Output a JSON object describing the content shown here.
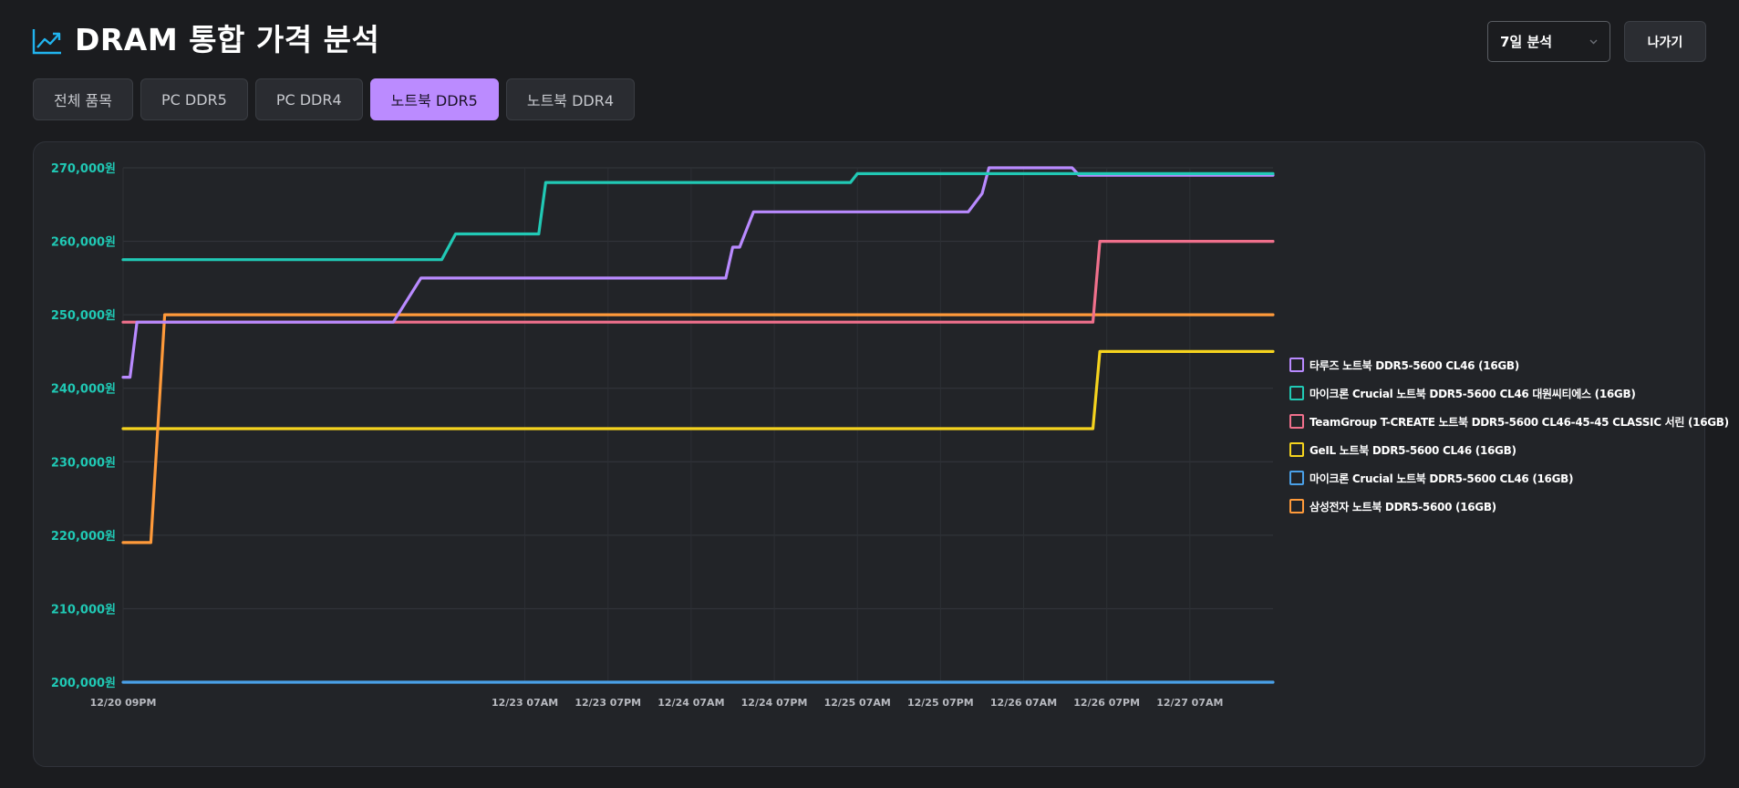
{
  "header": {
    "title": "DRAM 통합 가격 분석",
    "icon": "trending-up-icon",
    "accent": "#21b4ef"
  },
  "controls": {
    "period_label": "7일 분석",
    "exit_label": "나가기"
  },
  "tabs": [
    {
      "label": "전체 품목",
      "active": false
    },
    {
      "label": "PC DDR5",
      "active": false
    },
    {
      "label": "PC DDR4",
      "active": false
    },
    {
      "label": "노트북 DDR5",
      "active": true
    },
    {
      "label": "노트북 DDR4",
      "active": false
    }
  ],
  "chart_data": {
    "type": "line",
    "x_start": "12/20 09PM",
    "x_end": "12/27 07PM",
    "x_ticks": [
      "12/20 09PM",
      "12/23 07AM",
      "12/23 07PM",
      "12/24 07AM",
      "12/24 07PM",
      "12/25 07AM",
      "12/25 07PM",
      "12/26 07AM",
      "12/26 07PM",
      "12/27 07AM"
    ],
    "y_ticks": [
      "200,000원",
      "210,000원",
      "220,000원",
      "230,000원",
      "240,000원",
      "250,000원",
      "260,000원",
      "270,000원"
    ],
    "ylim": [
      200000,
      270000
    ],
    "grid": true,
    "legend_position": "right",
    "series": [
      {
        "name": "타루즈 노트북 DDR5-5600 CL46 (16GB)",
        "color": "#b98aff",
        "points": [
          [
            "12/20 09PM",
            241500
          ],
          [
            "12/20 10PM",
            241500
          ],
          [
            "12/20 11PM",
            249000
          ],
          [
            "12/22 12PM",
            249000
          ],
          [
            "12/22 04PM",
            255000
          ],
          [
            "12/24 12PM",
            255000
          ],
          [
            "12/24 01PM",
            259200
          ],
          [
            "12/24 02PM",
            259200
          ],
          [
            "12/24 04PM",
            264000
          ],
          [
            "12/25 11PM",
            264000
          ],
          [
            "12/26 01AM",
            266500
          ],
          [
            "12/26 02AM",
            270000
          ],
          [
            "12/26 02PM",
            270000
          ],
          [
            "12/26 03PM",
            269000
          ],
          [
            "12/27 07PM",
            269000
          ]
        ]
      },
      {
        "name": "마이크론 Crucial 노트북 DDR5-5600 CL46 대원씨티에스 (16GB)",
        "color": "#21c9b5",
        "points": [
          [
            "12/20 09PM",
            257500
          ],
          [
            "12/22 07PM",
            257500
          ],
          [
            "12/22 09PM",
            261000
          ],
          [
            "12/23 09AM",
            261000
          ],
          [
            "12/23 10AM",
            268000
          ],
          [
            "12/25 06AM",
            268000
          ],
          [
            "12/25 07AM",
            269200
          ],
          [
            "12/27 07PM",
            269200
          ]
        ]
      },
      {
        "name": "TeamGroup T-CREATE 노트북 DDR5-5600 CL46-45-45 CLASSIC 서린 (16GB)",
        "color": "#f0708c",
        "points": [
          [
            "12/20 09PM",
            249000
          ],
          [
            "12/26 05PM",
            249000
          ],
          [
            "12/26 06PM",
            260000
          ],
          [
            "12/27 07PM",
            260000
          ]
        ]
      },
      {
        "name": "GeIL 노트북 DDR5-5600 CL46 (16GB)",
        "color": "#f5d31e",
        "points": [
          [
            "12/20 09PM",
            234500
          ],
          [
            "12/26 05PM",
            234500
          ],
          [
            "12/26 06PM",
            245000
          ],
          [
            "12/27 07PM",
            245000
          ]
        ]
      },
      {
        "name": "마이크론 Crucial 노트북 DDR5-5600 CL46 (16GB)",
        "color": "#4aa0e8",
        "points": [
          [
            "12/20 09PM",
            200000
          ],
          [
            "12/27 07PM",
            200000
          ]
        ]
      },
      {
        "name": "삼성전자 노트북 DDR5-5600 (16GB)",
        "color": "#ff9a3a",
        "points": [
          [
            "12/20 09PM",
            219000
          ],
          [
            "12/21 01AM",
            219000
          ],
          [
            "12/21 03AM",
            250000
          ],
          [
            "12/27 07PM",
            250000
          ]
        ]
      }
    ]
  }
}
